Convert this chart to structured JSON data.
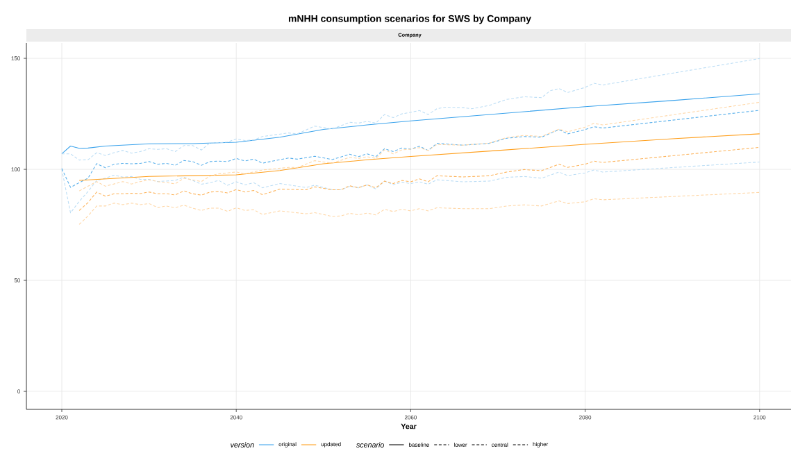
{
  "chart_data": {
    "type": "line",
    "title": "mNHH consumption scenarios for SWS by Company",
    "subtitle": "Company",
    "xlabel": "Year",
    "xlim": [
      2015.94,
      2103.6
    ],
    "ylim": [
      -8.1,
      156.9
    ],
    "xticks": [
      2020,
      2040,
      2060,
      2080,
      2100
    ],
    "yticks": [
      0,
      50,
      100,
      150
    ],
    "grid": true,
    "annotations": [
      "version",
      "original",
      "updated",
      "scenario",
      "baseline",
      "lower",
      "central",
      "higher"
    ],
    "series": [
      {
        "color": "#3ba3ec",
        "line_style": "solid",
        "x": [
          2020,
          2021,
          2022,
          2023,
          2025,
          2030,
          2035,
          2040,
          2045,
          2050,
          2055,
          2060,
          2070,
          2080,
          2090,
          2100
        ],
        "values": [
          107,
          110.5,
          109.5,
          109.6,
          110.5,
          111.5,
          111.6,
          112.2,
          114.5,
          118,
          120,
          121.8,
          125,
          128.2,
          131,
          134
        ]
      },
      {
        "color": "#bbddf5",
        "line_style": "dashed",
        "x": [
          2020,
          2021,
          2022,
          2023,
          2024,
          2025,
          2026,
          2027,
          2028,
          2029,
          2030,
          2031,
          2033,
          2034,
          2035,
          2036,
          2037,
          2038,
          2039,
          2040,
          2041,
          2042,
          2043,
          2045,
          2048,
          2049,
          2051,
          2052,
          2053,
          2054,
          2055,
          2056,
          2057,
          2058,
          2059,
          2060,
          2061,
          2062,
          2063,
          2066,
          2069,
          2071,
          2073,
          2075,
          2077,
          2078,
          2080,
          2081,
          2082,
          2100
        ],
        "values": [
          100,
          80.4,
          85.6,
          90,
          95,
          96,
          97.4,
          96.5,
          96.8,
          95.5,
          95.5,
          94.5,
          95,
          96.5,
          95,
          93.3,
          94,
          95,
          92.8,
          94.4,
          93,
          94,
          91.7,
          93.6,
          91.8,
          92.9,
          90.8,
          90.8,
          92.4,
          91.7,
          93,
          91.2,
          94.7,
          93.1,
          94.2,
          93.6,
          94.4,
          93.3,
          95.3,
          94.4,
          94.7,
          96.4,
          96.8,
          96,
          98.8,
          97.2,
          98.4,
          99.7,
          98.8,
          103.3
        ]
      },
      {
        "color": "#5ab0eb",
        "line_style": "dashed",
        "x": [
          2020,
          2021,
          2022,
          2023,
          2024,
          2025,
          2026,
          2027,
          2028,
          2029,
          2030,
          2031,
          2032,
          2033,
          2034,
          2035,
          2036,
          2037,
          2038,
          2039,
          2040,
          2041,
          2042,
          2043,
          2046,
          2047,
          2049,
          2051,
          2053,
          2054,
          2055,
          2056,
          2057,
          2058,
          2059,
          2060,
          2061,
          2062,
          2063,
          2066,
          2069,
          2071,
          2073,
          2075,
          2077,
          2078,
          2080,
          2081,
          2082,
          2100
        ],
        "values": [
          100.4,
          91.9,
          94,
          96,
          102.6,
          100.7,
          102.3,
          102.7,
          102.5,
          102.7,
          103.5,
          102.3,
          102.7,
          101.8,
          104,
          103.5,
          101.8,
          103.5,
          103.7,
          103.5,
          104.9,
          103.8,
          104.6,
          102.8,
          105.1,
          104.6,
          105.9,
          104.4,
          106.8,
          105.7,
          107,
          105.7,
          109.3,
          108,
          109.6,
          109.1,
          110.4,
          108.5,
          111.7,
          110.9,
          111.7,
          114,
          114.8,
          114.5,
          117.9,
          116,
          117.9,
          119.2,
          118.6,
          126.6
        ]
      },
      {
        "color": "#bbddf5",
        "line_style": "dashed",
        "x": [
          2020,
          2021,
          2022,
          2023,
          2024,
          2025,
          2026,
          2027,
          2028,
          2029,
          2030,
          2031,
          2032,
          2033,
          2034,
          2035,
          2036,
          2037,
          2038,
          2039,
          2040,
          2041,
          2042,
          2043,
          2046,
          2047,
          2049,
          2051,
          2053,
          2054,
          2055,
          2056,
          2057,
          2058,
          2059,
          2060,
          2061,
          2062,
          2063,
          2064,
          2066,
          2067,
          2069,
          2071,
          2073,
          2075,
          2076,
          2077,
          2078,
          2080,
          2081,
          2082,
          2100
        ],
        "values": [
          107,
          107,
          104.2,
          104.3,
          107.5,
          106.3,
          107.5,
          108.5,
          107.3,
          108,
          109.3,
          109,
          109.3,
          108,
          110.7,
          110.7,
          108.7,
          112,
          112,
          112.3,
          113.7,
          113,
          113.2,
          114.8,
          116.4,
          116,
          119.5,
          118.1,
          121.2,
          120.8,
          121.6,
          120.8,
          124.7,
          123.3,
          125,
          125.7,
          126.5,
          124.7,
          127.3,
          128,
          127.8,
          127.3,
          128.8,
          131.5,
          132.7,
          132.3,
          135.4,
          136.4,
          134.6,
          136.9,
          138.8,
          138,
          149.9
        ]
      },
      {
        "color": "#ff9f1c",
        "line_style": "solid",
        "x": [
          2022,
          2030,
          2040,
          2045,
          2050,
          2055,
          2060,
          2070,
          2080,
          2090,
          2100
        ],
        "values": [
          95,
          96.8,
          97.5,
          99.5,
          102.5,
          104.3,
          105.8,
          108.5,
          111.3,
          113.8,
          116
        ]
      },
      {
        "color": "#ffd6a5",
        "line_style": "dashed",
        "x": [
          2022,
          2023,
          2024,
          2025,
          2026,
          2027,
          2028,
          2029,
          2030,
          2031,
          2032,
          2033,
          2034,
          2035,
          2036,
          2037,
          2038,
          2039,
          2040,
          2041,
          2042,
          2043,
          2045,
          2048,
          2049,
          2051,
          2052,
          2053,
          2054,
          2055,
          2056,
          2057,
          2058,
          2059,
          2060,
          2061,
          2062,
          2063,
          2066,
          2069,
          2071,
          2073,
          2075,
          2077,
          2078,
          2080,
          2081,
          2082,
          2100
        ],
        "values": [
          75.2,
          79,
          83.5,
          83.5,
          84.8,
          84.1,
          84.8,
          84.1,
          84.6,
          82.8,
          83.5,
          82.7,
          83.9,
          82.5,
          81.5,
          82.5,
          82.5,
          81.1,
          82.7,
          81.5,
          81.8,
          79.7,
          81.3,
          80,
          80.5,
          78.8,
          79,
          80.2,
          79.5,
          80.3,
          79.5,
          82,
          81,
          82,
          81.3,
          82.3,
          81.3,
          82.7,
          82.3,
          82.3,
          83.5,
          84,
          83.5,
          85.8,
          84.6,
          85.4,
          86.8,
          86.3,
          89.6
        ]
      },
      {
        "color": "#fdb35a",
        "line_style": "dashed",
        "x": [
          2022,
          2023,
          2024,
          2025,
          2026,
          2027,
          2028,
          2029,
          2030,
          2031,
          2032,
          2033,
          2034,
          2035,
          2036,
          2037,
          2038,
          2039,
          2040,
          2041,
          2042,
          2043,
          2045,
          2048,
          2049,
          2051,
          2052,
          2053,
          2054,
          2055,
          2056,
          2057,
          2058,
          2059,
          2060,
          2061,
          2062,
          2063,
          2066,
          2069,
          2071,
          2073,
          2075,
          2077,
          2078,
          2080,
          2081,
          2082,
          2100
        ],
        "values": [
          81.5,
          85,
          89.8,
          87.9,
          89,
          89,
          89.2,
          89.1,
          89.8,
          89,
          89,
          88.5,
          90.3,
          89,
          88.4,
          89.8,
          90,
          89.4,
          90.9,
          89.8,
          90.5,
          88.6,
          91.1,
          90.8,
          92.1,
          90.8,
          90.8,
          92.6,
          91.7,
          93,
          91.7,
          94.7,
          93.6,
          95,
          94.4,
          95.7,
          94.4,
          97.1,
          96.6,
          97.1,
          98.8,
          99.9,
          99.4,
          102.3,
          100.9,
          102.3,
          103.7,
          103.1,
          109.9
        ]
      },
      {
        "color": "#ffd6a5",
        "line_style": "dashed",
        "x": [
          2022,
          2024,
          2025,
          2027,
          2028,
          2029,
          2030,
          2031,
          2033,
          2034,
          2036,
          2037,
          2038,
          2040,
          2041,
          2043,
          2046,
          2047,
          2049,
          2051,
          2053,
          2054,
          2055,
          2056,
          2057,
          2058,
          2059,
          2060,
          2061,
          2062,
          2063,
          2066,
          2069,
          2071,
          2073,
          2075,
          2077,
          2078,
          2080,
          2081,
          2082,
          2100
        ],
        "values": [
          90.3,
          94.5,
          92.4,
          94.5,
          93.4,
          94.5,
          95.3,
          94.5,
          93.5,
          96,
          94.5,
          97,
          98,
          98.8,
          98,
          99.7,
          100.9,
          100.8,
          103.9,
          102.8,
          105.4,
          104.9,
          105.7,
          104.9,
          108.8,
          107,
          108.8,
          109.1,
          109.8,
          108.5,
          111.2,
          110.9,
          111.8,
          114.3,
          115.3,
          114.8,
          118.1,
          116.9,
          119,
          120.7,
          120,
          130.2
        ]
      }
    ]
  }
}
